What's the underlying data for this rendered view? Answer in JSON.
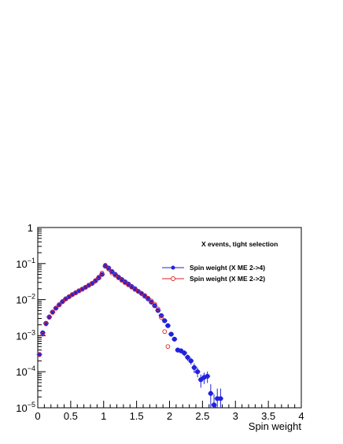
{
  "chart_data": {
    "type": "scatter",
    "xlabel": "Spin weight",
    "ylabel": "",
    "xlim": [
      0,
      4
    ],
    "ylim": [
      1e-05,
      1
    ],
    "y_scale": "log",
    "grid": false,
    "legend_position": "top-right",
    "annotation": "X events, tight selection",
    "x_ticks": [
      {
        "v": 0,
        "label": "0"
      },
      {
        "v": 0.5,
        "label": "0.5"
      },
      {
        "v": 1,
        "label": "1"
      },
      {
        "v": 1.5,
        "label": "1.5"
      },
      {
        "v": 2,
        "label": "2"
      },
      {
        "v": 2.5,
        "label": "2.5"
      },
      {
        "v": 3,
        "label": "3"
      },
      {
        "v": 3.5,
        "label": "3.5"
      },
      {
        "v": 4,
        "label": "4"
      }
    ],
    "y_ticks": [
      {
        "v": 1,
        "mant": "1",
        "exp": ""
      },
      {
        "v": 0.1,
        "mant": "10",
        "exp": "−1"
      },
      {
        "v": 0.01,
        "mant": "10",
        "exp": "−2"
      },
      {
        "v": 0.001,
        "mant": "10",
        "exp": "−3"
      },
      {
        "v": 0.0001,
        "mant": "10",
        "exp": "−4"
      },
      {
        "v": 1e-05,
        "mant": "10",
        "exp": "−5"
      }
    ],
    "series": [
      {
        "name": "Spin weight (X ME 2->4)",
        "color": "#2222dd",
        "marker": "filled-circle",
        "x": [
          0.025,
          0.075,
          0.125,
          0.175,
          0.225,
          0.275,
          0.325,
          0.375,
          0.425,
          0.475,
          0.525,
          0.575,
          0.625,
          0.675,
          0.725,
          0.775,
          0.825,
          0.875,
          0.925,
          0.975,
          1.025,
          1.075,
          1.125,
          1.175,
          1.225,
          1.275,
          1.325,
          1.375,
          1.425,
          1.475,
          1.525,
          1.575,
          1.625,
          1.675,
          1.725,
          1.775,
          1.825,
          1.875,
          1.925,
          1.975,
          2.025,
          2.075,
          2.125,
          2.175,
          2.225,
          2.275,
          2.325,
          2.375,
          2.425,
          2.475,
          2.525,
          2.575,
          2.625,
          2.675,
          2.725,
          2.775
        ],
        "y": [
          0.0003,
          0.0012,
          0.0022,
          0.0033,
          0.0045,
          0.0058,
          0.0072,
          0.0088,
          0.0105,
          0.012,
          0.0138,
          0.0155,
          0.0175,
          0.0195,
          0.022,
          0.025,
          0.028,
          0.033,
          0.04,
          0.05,
          0.085,
          0.075,
          0.06,
          0.05,
          0.042,
          0.036,
          0.031,
          0.027,
          0.023,
          0.02,
          0.017,
          0.0148,
          0.0125,
          0.0105,
          0.0085,
          0.0068,
          0.005,
          0.0036,
          0.0026,
          0.0019,
          0.0011,
          0.0008,
          0.0004,
          0.00038,
          0.00033,
          0.00025,
          0.0002,
          0.00013,
          0.0001,
          6e-05,
          7e-05,
          7.5e-05,
          2.5e-05,
          1.2e-05,
          1.8e-05,
          1.8e-05
        ],
        "err_rel": [
          0.1,
          0.05,
          0.04,
          0.03,
          0.03,
          0.03,
          0.03,
          0.03,
          0.03,
          0.03,
          0.03,
          0.03,
          0.03,
          0.03,
          0.03,
          0.03,
          0.03,
          0.03,
          0.03,
          0.03,
          0.03,
          0.03,
          0.03,
          0.03,
          0.03,
          0.03,
          0.03,
          0.03,
          0.03,
          0.03,
          0.03,
          0.03,
          0.03,
          0.03,
          0.04,
          0.04,
          0.05,
          0.06,
          0.08,
          0.09,
          0.1,
          0.12,
          0.15,
          0.15,
          0.18,
          0.2,
          0.22,
          0.3,
          0.3,
          0.4,
          0.35,
          0.35,
          0.8,
          1,
          0.9,
          0.9
        ]
      },
      {
        "name": "Spin weight (X ME 2->2)",
        "color": "#dd2222",
        "marker": "open-circle",
        "x": [
          0.025,
          0.075,
          0.125,
          0.175,
          0.225,
          0.275,
          0.325,
          0.375,
          0.425,
          0.475,
          0.525,
          0.575,
          0.625,
          0.675,
          0.725,
          0.775,
          0.825,
          0.875,
          0.925,
          0.975,
          1.025,
          1.075,
          1.125,
          1.175,
          1.225,
          1.275,
          1.325,
          1.375,
          1.425,
          1.475,
          1.525,
          1.575,
          1.625,
          1.675,
          1.725,
          1.775,
          1.825,
          1.875,
          1.925,
          1.975
        ],
        "y": [
          0.0003,
          0.0011,
          0.0021,
          0.0032,
          0.0044,
          0.0057,
          0.0071,
          0.0087,
          0.0104,
          0.012,
          0.0137,
          0.0154,
          0.0174,
          0.0194,
          0.0218,
          0.0248,
          0.0285,
          0.034,
          0.042,
          0.055,
          0.09,
          0.07,
          0.055,
          0.047,
          0.04,
          0.034,
          0.029,
          0.0255,
          0.022,
          0.019,
          0.0168,
          0.015,
          0.013,
          0.011,
          0.0092,
          0.0075,
          0.0055,
          0.0032,
          0.0013,
          0.0005
        ]
      }
    ]
  }
}
